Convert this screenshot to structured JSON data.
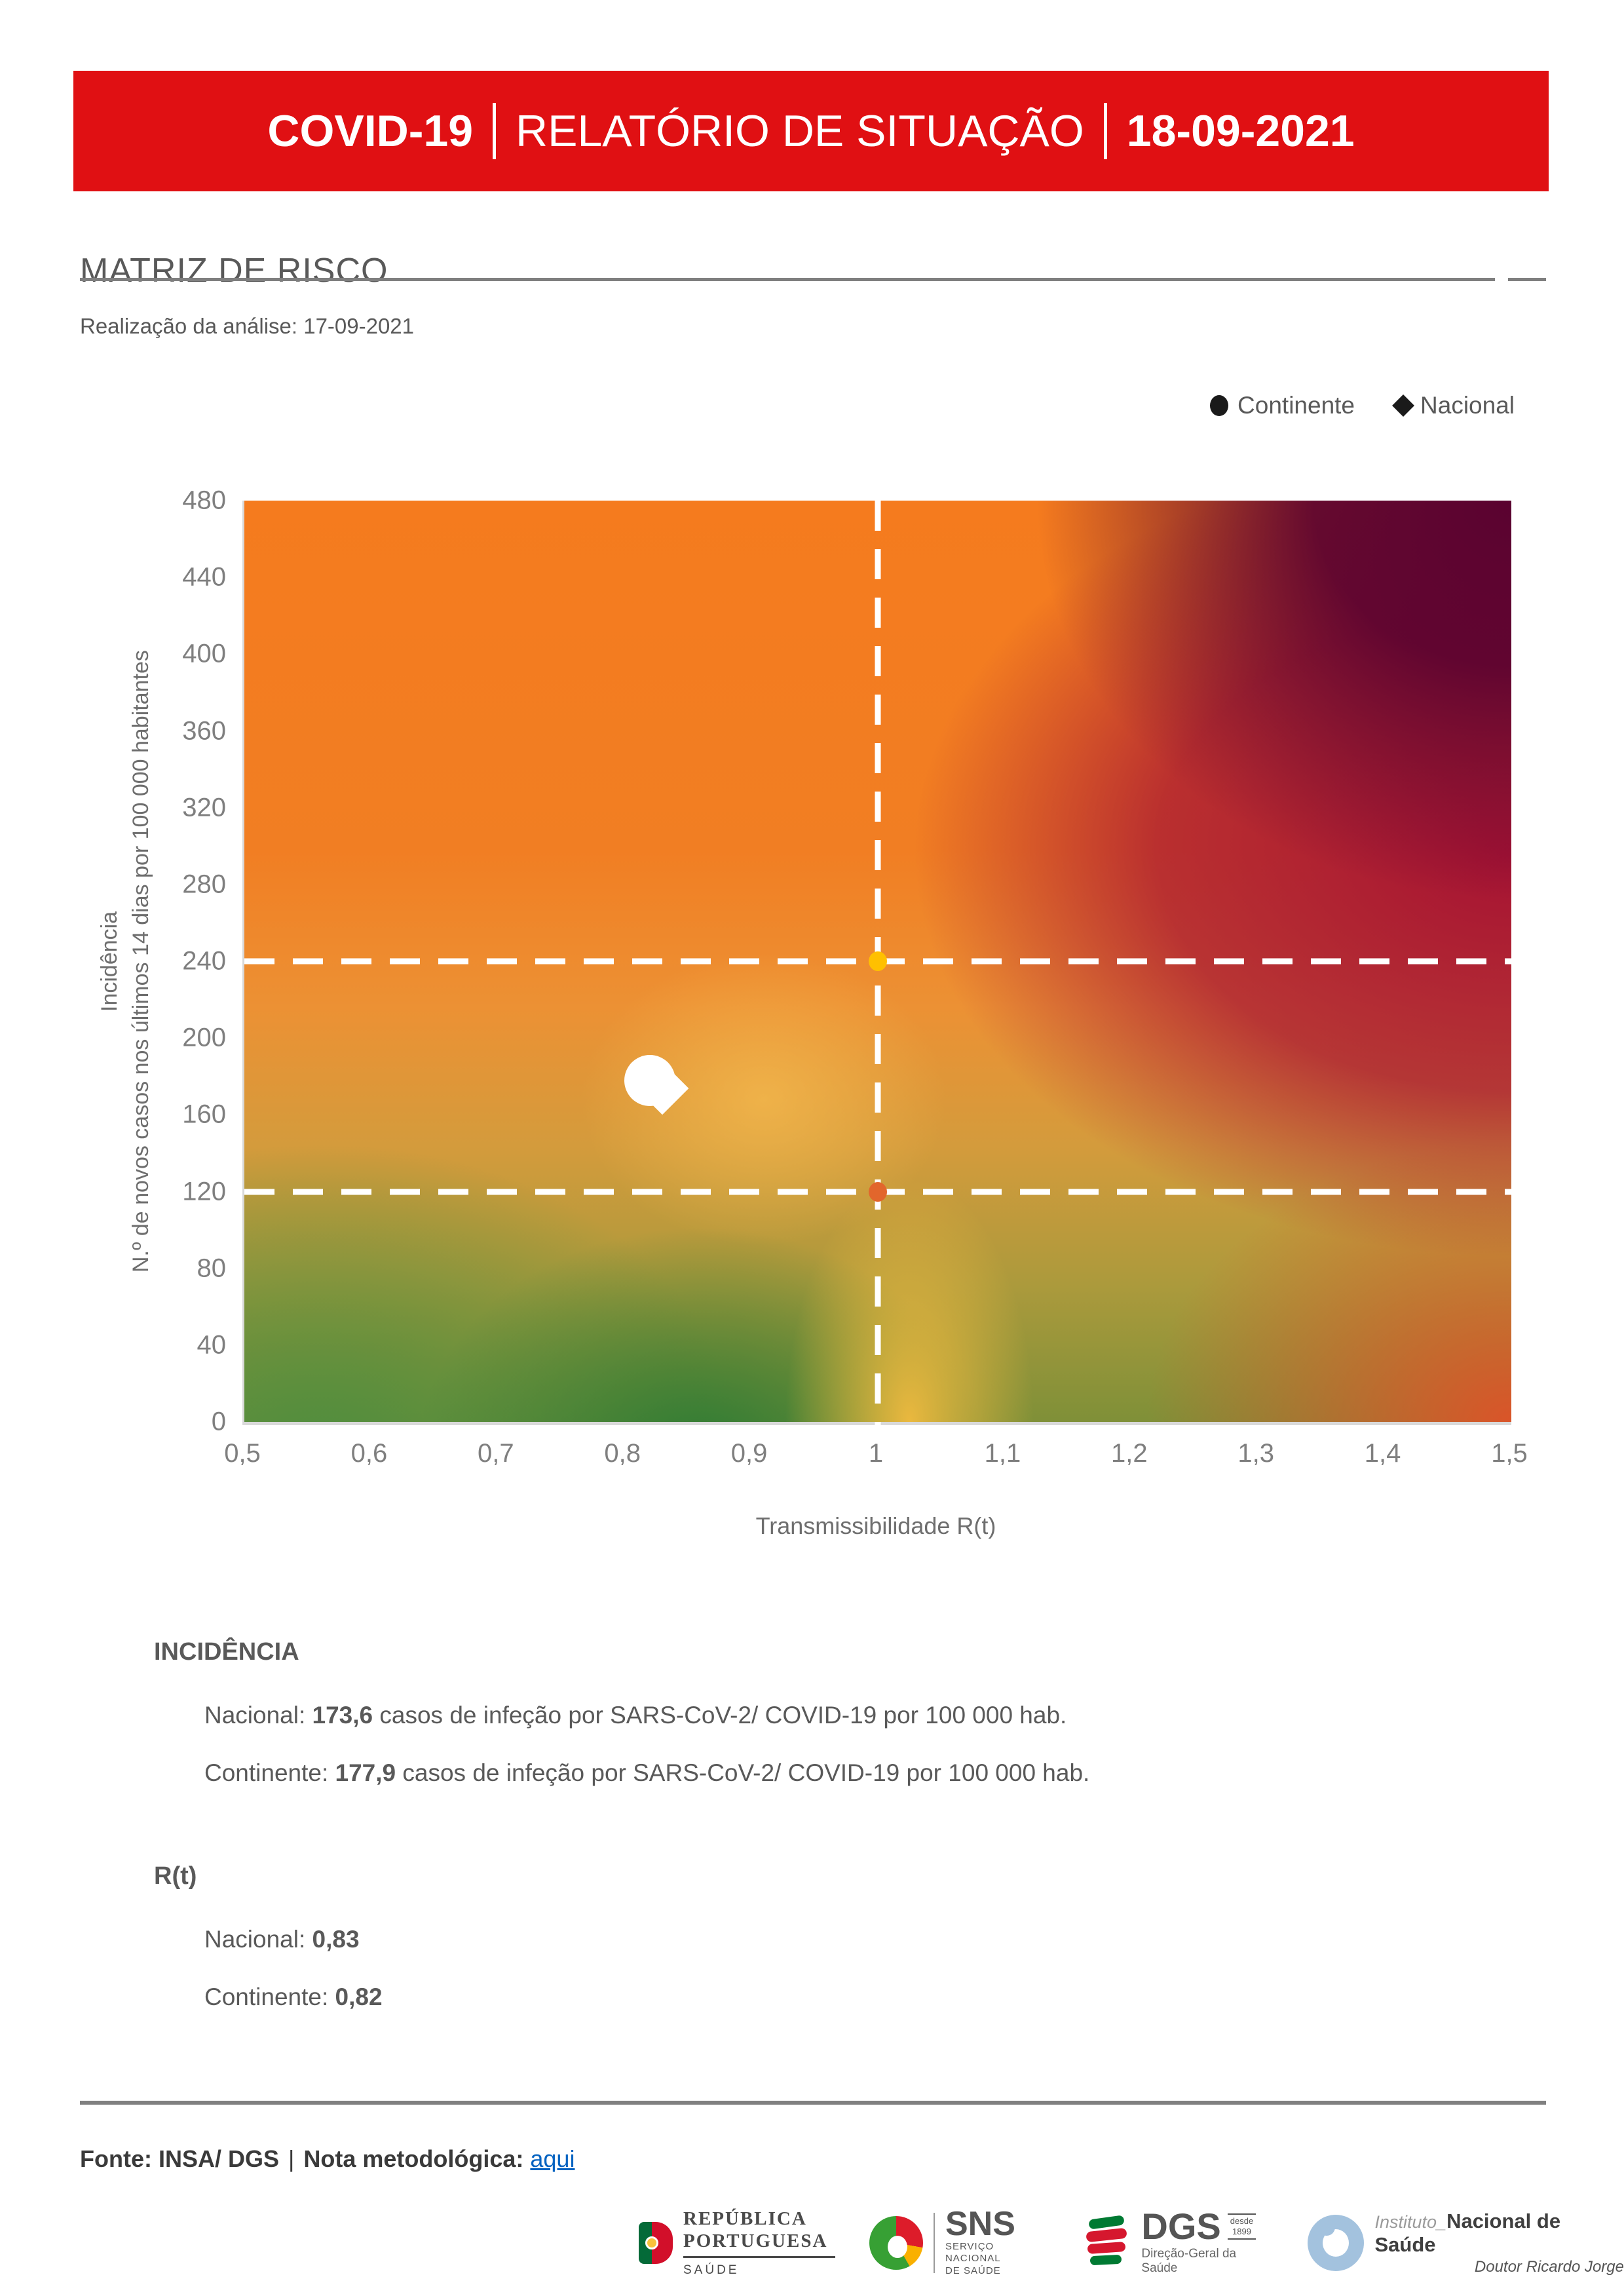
{
  "banner": {
    "part1": "COVID-19",
    "part2": "RELATÓRIO DE SITUAÇÃO",
    "part3": "18-09-2021",
    "bg_color": "#E01013"
  },
  "page": {
    "title": "MATRIZ DE RISCO",
    "analysis": "Realização da análise: 17-09-2021"
  },
  "legend": {
    "items": [
      {
        "marker": "circle",
        "label": "Continente"
      },
      {
        "marker": "diamond",
        "label": "Nacional"
      }
    ]
  },
  "chart_data": {
    "type": "scatter",
    "title": "MATRIZ DE RISCO",
    "xlabel": "Transmissibilidade R(t)",
    "ylabel_line1": "Incidência",
    "ylabel_line2": "N.º de novos casos nos últimos 14 dias por 100 000 habitantes",
    "xlim": [
      0.5,
      1.5
    ],
    "ylim": [
      0,
      480
    ],
    "x_ticks": [
      "0,5",
      "0,6",
      "0,7",
      "0,8",
      "0,9",
      "1",
      "1,1",
      "1,2",
      "1,3",
      "1,4",
      "1,5"
    ],
    "x_tick_values": [
      0.5,
      0.6,
      0.7,
      0.8,
      0.9,
      1.0,
      1.1,
      1.2,
      1.3,
      1.4,
      1.5
    ],
    "y_ticks": [
      0,
      40,
      80,
      120,
      160,
      200,
      240,
      280,
      320,
      360,
      400,
      440,
      480
    ],
    "grid": false,
    "legend_position": "top-right",
    "thresholds": {
      "vertical": [
        1.0
      ],
      "horizontal": [
        120,
        240
      ]
    },
    "threshold_points": [
      {
        "x": 1.0,
        "y": 240,
        "color": "#FFC000"
      },
      {
        "x": 1.0,
        "y": 120,
        "color": "#E2662C"
      }
    ],
    "series": [
      {
        "name": "Continente",
        "marker": "circle",
        "color": "#FFFFFF",
        "x": 0.82,
        "y": 177.9
      },
      {
        "name": "Nacional",
        "marker": "diamond",
        "color": "#FFFFFF",
        "x": 0.83,
        "y": 173.6
      }
    ],
    "background_colors": {
      "top_left": "#F47B21",
      "top_right": "#5C0232",
      "bottom_left": "#4F8C3E",
      "bottom_right": "#E05229",
      "right_middle": "#A21034",
      "center_band": "#F7BD4F"
    }
  },
  "incidencia": {
    "header": "INCIDÊNCIA",
    "lines": [
      {
        "label": "Nacional: ",
        "value": "173,6",
        "rest": " casos de infeção por SARS-CoV-2/ COVID-19 por 100 000 hab."
      },
      {
        "label": "Continente: ",
        "value": "177,9",
        "rest": " casos de infeção por SARS-CoV-2/ COVID-19 por 100 000 hab."
      }
    ]
  },
  "rt": {
    "header": "R(t)",
    "lines": [
      {
        "label": "Nacional: ",
        "value": "0,83",
        "rest": ""
      },
      {
        "label": "Continente: ",
        "value": "0,82",
        "rest": ""
      }
    ]
  },
  "footer": {
    "fonte": "Fonte: INSA/ DGS",
    "pipe": "|",
    "nota": "Nota metodológica:",
    "link": "aqui"
  },
  "logos": {
    "republica": {
      "line1": "REPÚBLICA",
      "line2": "PORTUGUESA",
      "sub": "SAÚDE"
    },
    "sns": {
      "abbr": "SNS",
      "sub1": "SERVIÇO NACIONAL",
      "sub2": "DE SAÚDE"
    },
    "dgs": {
      "abbr": "DGS",
      "since1": "desde",
      "since2": "1899",
      "sub": "Direção-Geral da Saúde"
    },
    "insa": {
      "prefix": "Instituto_",
      "name": "Nacional de Saúde",
      "sub": "Doutor Ricardo Jorge"
    }
  }
}
